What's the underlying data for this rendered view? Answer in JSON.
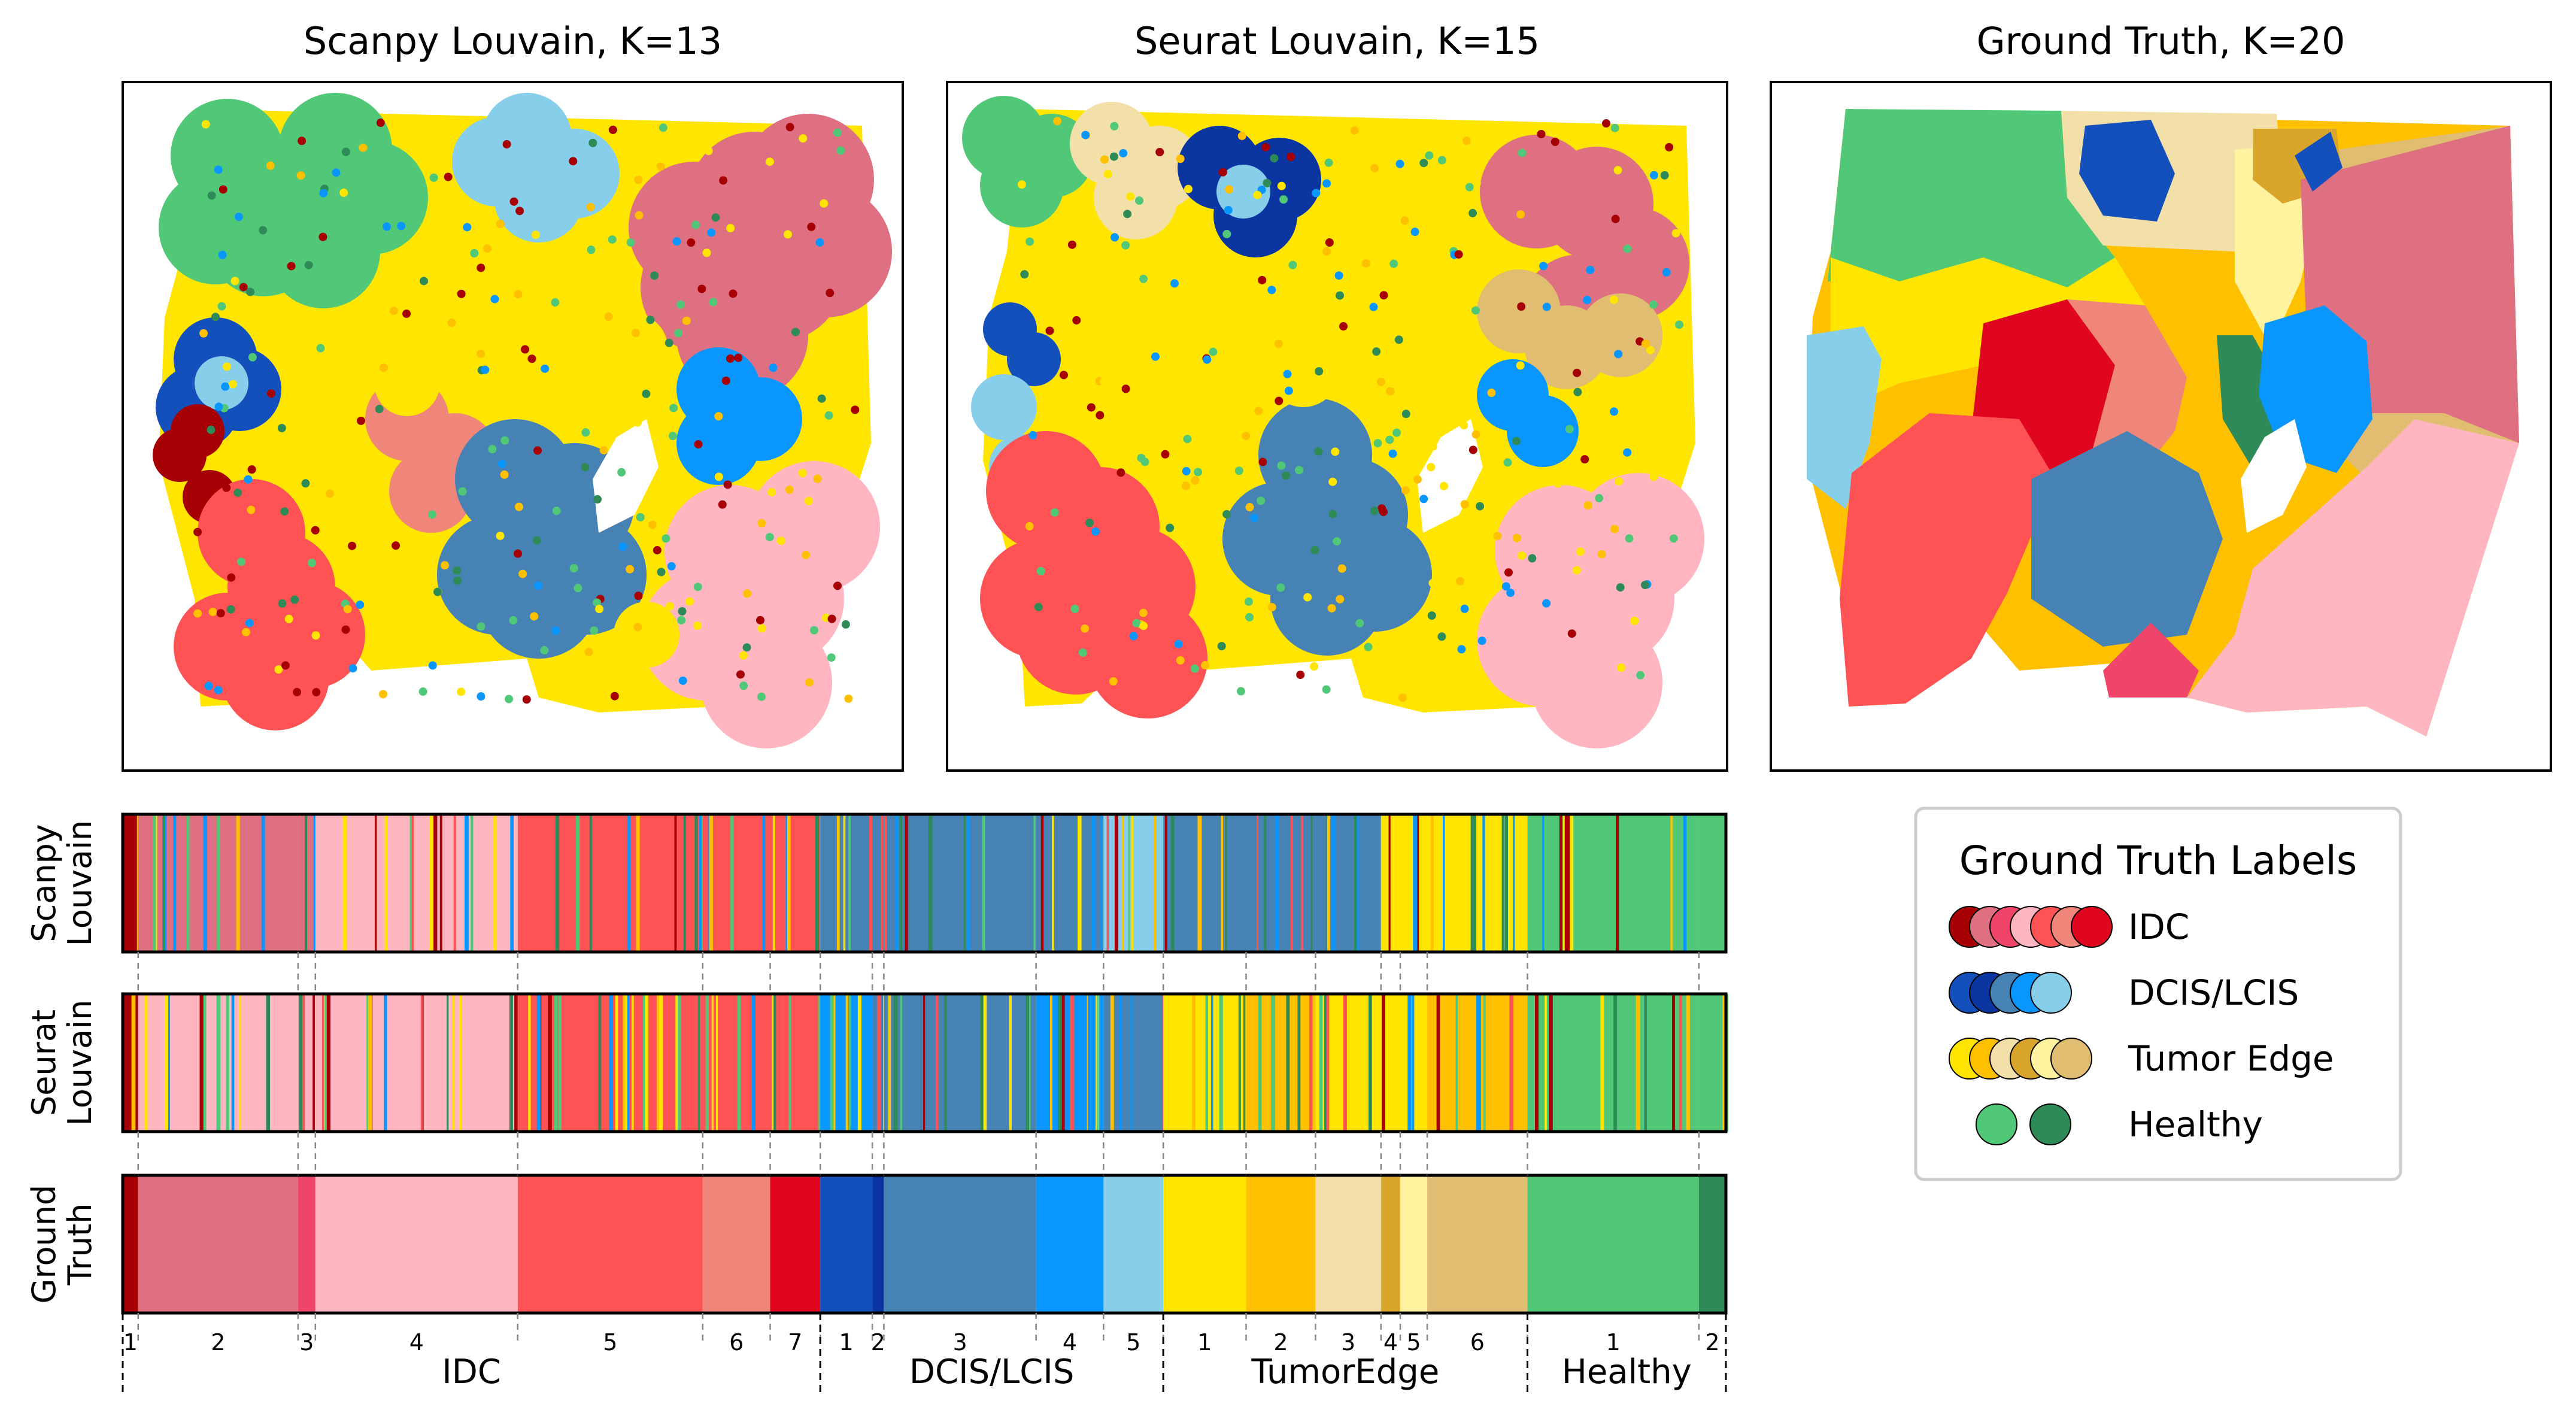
{
  "chart_data": {
    "type": "figure",
    "spatial_maps": [
      {
        "title": "Scanpy Louvain, K=13"
      },
      {
        "title": "Seurat Louvain, K=15"
      },
      {
        "title": "Ground Truth, K=20"
      }
    ],
    "bar_rows": [
      {
        "name": "Scanpy",
        "name2": "Louvain"
      },
      {
        "name": "Seurat",
        "name2": "Louvain"
      },
      {
        "name": "Ground",
        "name2": "Truth"
      }
    ],
    "ground_truth_segments": [
      {
        "group": "IDC",
        "label": "1",
        "width": 0.8,
        "color": "#A60005"
      },
      {
        "group": "IDC",
        "label": "2",
        "width": 8.3,
        "color": "#DE7081"
      },
      {
        "group": "IDC",
        "label": "3",
        "width": 0.9,
        "color": "#F0456A"
      },
      {
        "group": "IDC",
        "label": "4",
        "width": 10.5,
        "color": "#FFB6C1"
      },
      {
        "group": "IDC",
        "label": "5",
        "width": 9.6,
        "color": "#FF5254"
      },
      {
        "group": "IDC",
        "label": "6",
        "width": 3.5,
        "color": "#F08679"
      },
      {
        "group": "IDC",
        "label": "7",
        "width": 2.6,
        "color": "#E0061F"
      },
      {
        "group": "DCIS/LCIS",
        "label": "1",
        "width": 2.7,
        "color": "#1450BC"
      },
      {
        "group": "DCIS/LCIS",
        "label": "2",
        "width": 0.6,
        "color": "#0B35A0"
      },
      {
        "group": "DCIS/LCIS",
        "label": "3",
        "width": 7.9,
        "color": "#4682B4"
      },
      {
        "group": "DCIS/LCIS",
        "label": "4",
        "width": 3.5,
        "color": "#0A96FF"
      },
      {
        "group": "DCIS/LCIS",
        "label": "5",
        "width": 3.1,
        "color": "#87CEEB"
      },
      {
        "group": "TumorEdge",
        "label": "1",
        "width": 4.3,
        "color": "#FFE500"
      },
      {
        "group": "TumorEdge",
        "label": "2",
        "width": 3.6,
        "color": "#FFC000"
      },
      {
        "group": "TumorEdge",
        "label": "3",
        "width": 3.4,
        "color": "#F2E0A8"
      },
      {
        "group": "TumorEdge",
        "label": "4",
        "width": 1.0,
        "color": "#D9A52A"
      },
      {
        "group": "TumorEdge",
        "label": "5",
        "width": 1.4,
        "color": "#FFF3A0"
      },
      {
        "group": "TumorEdge",
        "label": "6",
        "width": 5.2,
        "color": "#E0BD70"
      },
      {
        "group": "Healthy",
        "label": "1",
        "width": 8.9,
        "color": "#50C878"
      },
      {
        "group": "Healthy",
        "label": "2",
        "width": 1.4,
        "color": "#2E8B57"
      }
    ],
    "group_labels": [
      "IDC",
      "DCIS/LCIS",
      "TumorEdge",
      "Healthy"
    ],
    "legend": {
      "title": "Ground Truth Labels",
      "entries": [
        {
          "label": "IDC",
          "colors": [
            "#A60005",
            "#DE7081",
            "#F0456A",
            "#FFB6C1",
            "#FF5254",
            "#F08679",
            "#E0061F"
          ]
        },
        {
          "label": "DCIS/LCIS",
          "colors": [
            "#1450BC",
            "#0B35A0",
            "#4682B4",
            "#0A96FF",
            "#87CEEB"
          ]
        },
        {
          "label": "Tumor Edge",
          "colors": [
            "#FFE500",
            "#FFC000",
            "#F2E0A8",
            "#D9A52A",
            "#FFF3A0",
            "#E0BD70"
          ]
        },
        {
          "label": "Healthy",
          "colors": [
            "#50C878",
            "#2E8B57"
          ]
        }
      ]
    }
  }
}
